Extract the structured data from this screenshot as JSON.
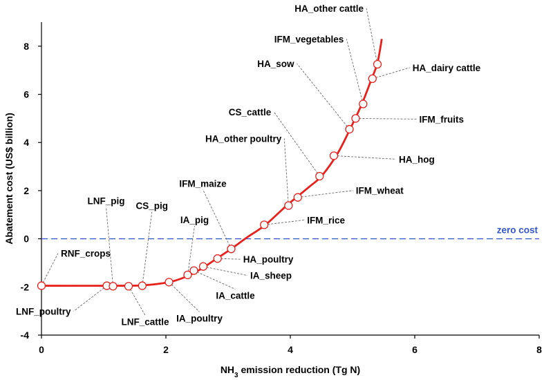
{
  "chart_data": {
    "type": "line",
    "xlabel": {
      "pre": "NH",
      "sub": "3",
      "post": " emission reduction (Tg N)"
    },
    "ylabel": "Abatement  cost (US$ billion)",
    "xlim": [
      0,
      8
    ],
    "ylim": [
      -4,
      9
    ],
    "x_ticks": [
      0,
      2,
      4,
      6,
      8
    ],
    "y_ticks": [
      -4,
      -2,
      0,
      2,
      4,
      6,
      8
    ],
    "grid": false,
    "reference_line": {
      "y": 0,
      "label": "zero cost",
      "color": "#3355cc",
      "style": "dashed"
    },
    "curve_color": "#e8201c",
    "curve": [
      {
        "x": 0,
        "y": -1.95
      },
      {
        "x": 1.3,
        "y": -1.95
      },
      {
        "x": 1.65,
        "y": -1.93
      },
      {
        "x": 2.05,
        "y": -1.8
      },
      {
        "x": 2.3,
        "y": -1.6
      },
      {
        "x": 2.55,
        "y": -1.28
      },
      {
        "x": 2.8,
        "y": -0.85
      },
      {
        "x": 3.05,
        "y": -0.42
      },
      {
        "x": 3.3,
        "y": 0.05
      },
      {
        "x": 3.6,
        "y": 0.58
      },
      {
        "x": 3.95,
        "y": 1.4
      },
      {
        "x": 4.3,
        "y": 2.15
      },
      {
        "x": 4.5,
        "y": 2.6
      },
      {
        "x": 4.75,
        "y": 3.5
      },
      {
        "x": 4.95,
        "y": 4.5
      },
      {
        "x": 5.15,
        "y": 5.6
      },
      {
        "x": 5.3,
        "y": 6.6
      },
      {
        "x": 5.4,
        "y": 7.3
      },
      {
        "x": 5.47,
        "y": 8.3
      }
    ],
    "points": [
      {
        "name": "RNF_crops",
        "x": 0.0,
        "y": -1.95
      },
      {
        "name": "LNF_poultry",
        "x": 1.05,
        "y": -1.95
      },
      {
        "name": "LNF_pig",
        "x": 1.15,
        "y": -1.97
      },
      {
        "name": "LNF_cattle",
        "x": 1.4,
        "y": -1.97
      },
      {
        "name": "CS_pig",
        "x": 1.62,
        "y": -1.95
      },
      {
        "name": "IA_poultry",
        "x": 2.05,
        "y": -1.8
      },
      {
        "name": "IA_pig",
        "x": 2.35,
        "y": -1.5
      },
      {
        "name": "IA_cattle",
        "x": 2.45,
        "y": -1.32
      },
      {
        "name": "IA_sheep",
        "x": 2.6,
        "y": -1.15
      },
      {
        "name": "HA_poultry",
        "x": 2.83,
        "y": -0.82
      },
      {
        "name": "IFM_maize",
        "x": 3.05,
        "y": -0.42
      },
      {
        "name": "IFM_rice",
        "x": 3.58,
        "y": 0.58
      },
      {
        "name": "HA_other poultry",
        "x": 3.97,
        "y": 1.38
      },
      {
        "name": "IFM_wheat",
        "x": 4.12,
        "y": 1.72
      },
      {
        "name": "CS_cattle",
        "x": 4.47,
        "y": 2.6
      },
      {
        "name": "HA_hog",
        "x": 4.7,
        "y": 3.45
      },
      {
        "name": "HA_sow",
        "x": 4.95,
        "y": 4.55
      },
      {
        "name": "IFM_fruits",
        "x": 5.05,
        "y": 5.0
      },
      {
        "name": "IFM_vegetables",
        "x": 5.17,
        "y": 5.6
      },
      {
        "name": "HA_dairy cattle",
        "x": 5.32,
        "y": 6.65
      },
      {
        "name": "HA_other cattle",
        "x": 5.4,
        "y": 7.25
      }
    ]
  }
}
